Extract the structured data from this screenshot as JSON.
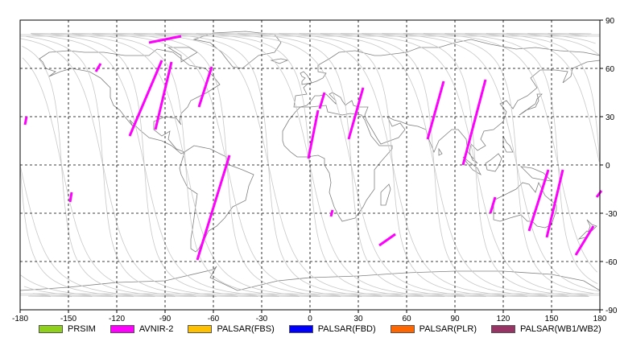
{
  "map": {
    "lon_ticks": [
      "-180",
      "-150",
      "-120",
      "-90",
      "-60",
      "-30",
      "0",
      "30",
      "60",
      "90",
      "120",
      "150",
      "180"
    ],
    "lat_ticks_right": [
      "90",
      "60",
      "30",
      "0",
      "-30",
      "-60",
      "-90"
    ],
    "lon_range": [
      -180,
      180
    ],
    "lat_range": [
      -90,
      90
    ],
    "grid": true,
    "grid_style": "dashed",
    "coastline_color": "#808080",
    "orbit_track_color": "#c8c8c8"
  },
  "legend": {
    "items": [
      {
        "label": "PRSIM",
        "color": "#8fd11a"
      },
      {
        "label": "AVNIR-2",
        "color": "#ff00ff"
      },
      {
        "label": "PALSAR(FBS)",
        "color": "#ffc000"
      },
      {
        "label": "PALSAR(FBD)",
        "color": "#0000ff"
      },
      {
        "label": "PALSAR(PLR)",
        "color": "#ff6600"
      },
      {
        "label": "PALSAR(WB1/WB2)",
        "color": "#993366"
      }
    ]
  },
  "chart_data": {
    "type": "scatter",
    "series": [
      {
        "name": "AVNIR-2",
        "segments": [
          [
            [
              -112,
              18
            ],
            [
              -92,
              65
            ]
          ],
          [
            [
              -96,
              22
            ],
            [
              -86,
              64
            ]
          ],
          [
            [
              -69,
              36
            ],
            [
              -61,
              61
            ]
          ],
          [
            [
              -133,
              58
            ],
            [
              -130,
              63
            ]
          ],
          [
            [
              -100,
              76
            ],
            [
              -80,
              80
            ]
          ],
          [
            [
              -70,
              -59
            ],
            [
              -50,
              6
            ]
          ],
          [
            [
              -177,
              25
            ],
            [
              -176,
              30
            ]
          ],
          [
            [
              -149,
              -23
            ],
            [
              -148,
              -17
            ]
          ],
          [
            [
              -1,
              4
            ],
            [
              5,
              34
            ]
          ],
          [
            [
              6,
              35
            ],
            [
              9,
              45
            ]
          ],
          [
            [
              24,
              16
            ],
            [
              33,
              48
            ]
          ],
          [
            [
              13,
              -32
            ],
            [
              14,
              -28
            ]
          ],
          [
            [
              43,
              -50
            ],
            [
              53,
              -43
            ]
          ],
          [
            [
              73,
              16
            ],
            [
              83,
              52
            ]
          ],
          [
            [
              95,
              0
            ],
            [
              109,
              53
            ]
          ],
          [
            [
              112,
              -30
            ],
            [
              115,
              -20
            ]
          ],
          [
            [
              136,
              -41
            ],
            [
              148,
              -3
            ]
          ],
          [
            [
              147,
              -45
            ],
            [
              157,
              -3
            ]
          ],
          [
            [
              165,
              -56
            ],
            [
              176,
              -38
            ]
          ],
          [
            [
              178,
              -20
            ],
            [
              181,
              -16
            ]
          ]
        ]
      }
    ]
  }
}
